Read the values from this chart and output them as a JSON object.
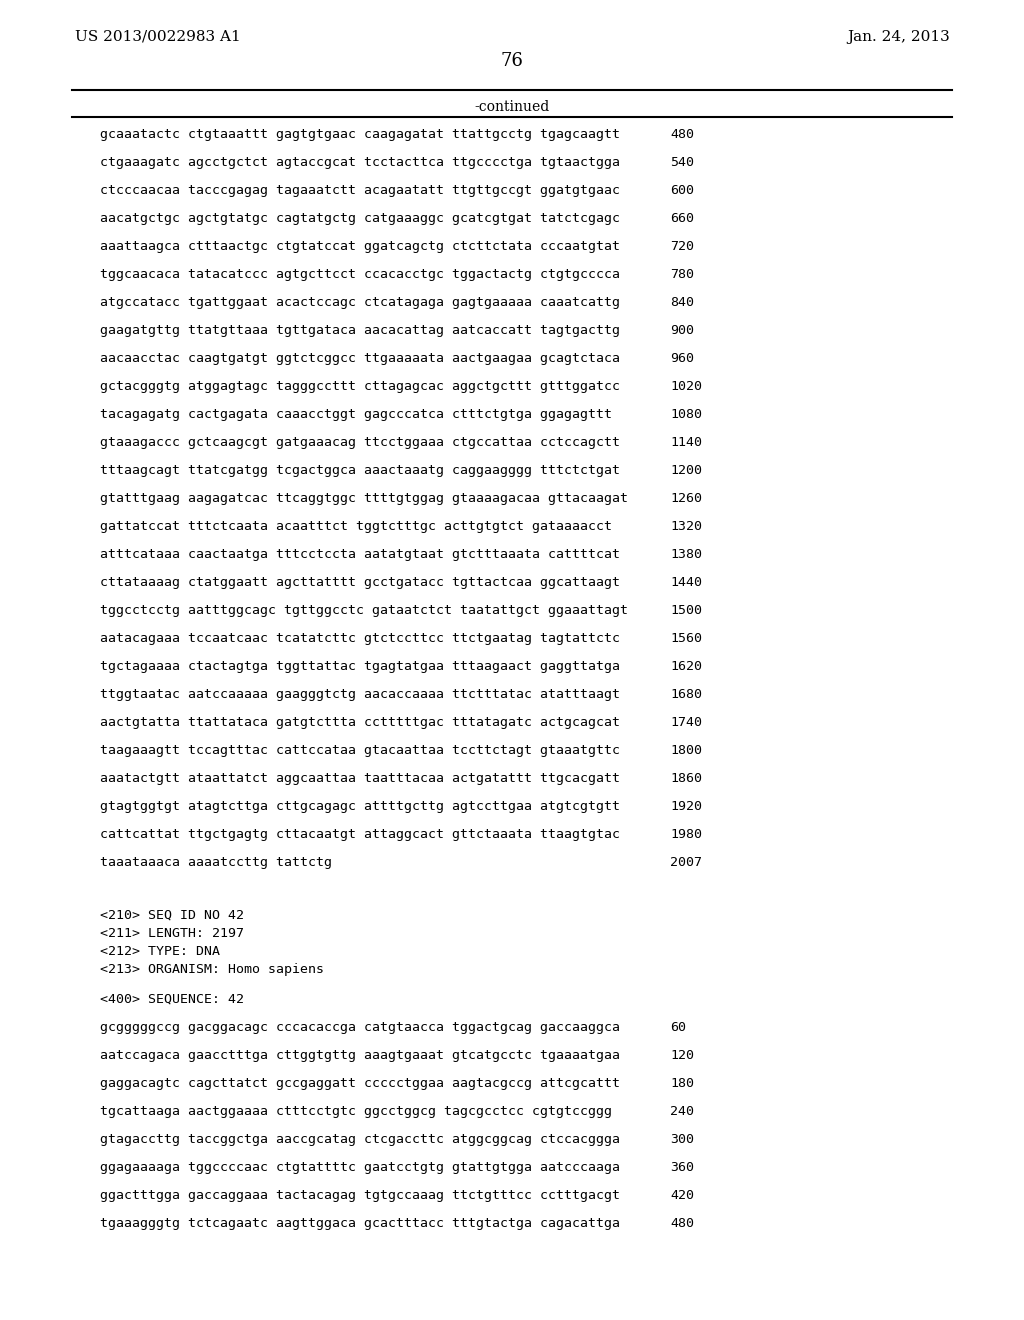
{
  "header_left": "US 2013/0022983 A1",
  "header_right": "Jan. 24, 2013",
  "page_number": "76",
  "continued_label": "-continued",
  "background_color": "#ffffff",
  "text_color": "#000000",
  "sequence_lines": [
    [
      "gcaaatactc ctgtaaattt gagtgtgaac caagagatat ttattgcctg tgagcaagtt",
      "480"
    ],
    [
      "ctgaaagatc agcctgctct agtaccgcat tcctacttca ttgcccctga tgtaactgga",
      "540"
    ],
    [
      "ctcccaacaa tacccgagag tagaaatctt acagaatatt ttgttgccgt ggatgtgaac",
      "600"
    ],
    [
      "aacatgctgc agctgtatgc cagtatgctg catgaaaggc gcatcgtgat tatctcgagc",
      "660"
    ],
    [
      "aaattaagca ctttaactgc ctgtatccat ggatcagctg ctcttctata cccaatgtat",
      "720"
    ],
    [
      "tggcaacaca tatacatccc agtgcttcct ccacacctgc tggactactg ctgtgcccca",
      "780"
    ],
    [
      "atgccatacc tgattggaat acactccagc ctcatagaga gagtgaaaaa caaatcattg",
      "840"
    ],
    [
      "gaagatgttg ttatgttaaa tgttgataca aacacattag aatcaccatt tagtgacttg",
      "900"
    ],
    [
      "aacaacctac caagtgatgt ggtctcggcc ttgaaaaata aactgaagaa gcagtctaca",
      "960"
    ],
    [
      "gctacgggtg atggagtagc tagggccttt cttagagcac aggctgcttt gtttggatcc",
      "1020"
    ],
    [
      "tacagagatg cactgagata caaacctggt gagcccatca ctttctgtga ggagagttt",
      "1080"
    ],
    [
      "gtaaagaccc gctcaagcgt gatgaaacag ttcctggaaa ctgccattaa cctccagctt",
      "1140"
    ],
    [
      "tttaagcagt ttatcgatgg tcgactggca aaactaaatg caggaagggg tttctctgat",
      "1200"
    ],
    [
      "gtatttgaag aagagatcac ttcaggtggc ttttgtggag gtaaaagacaa gttacaagat",
      "1260"
    ],
    [
      "gattatccat tttctcaata acaatttct tggtctttgc acttgtgtct gataaaacct",
      "1320"
    ],
    [
      "atttcataaa caactaatga tttcctccta aatatgtaat gtctttaaata cattttcat",
      "1380"
    ],
    [
      "cttataaaag ctatggaatt agcttatttt gcctgatacc tgttactcaa ggcattaagt",
      "1440"
    ],
    [
      "tggcctcctg aatttggcagc tgttggcctc gataatctct taatattgct ggaaattagt",
      "1500"
    ],
    [
      "aatacagaaa tccaatcaac tcatatcttc gtctccttcc ttctgaatag tagtattctc",
      "1560"
    ],
    [
      "tgctagaaaa ctactagtga tggttattac tgagtatgaa tttaagaact gaggttatga",
      "1620"
    ],
    [
      "ttggtaatac aatccaaaaa gaagggtctg aacaccaaaa ttctttatac atatttaagt",
      "1680"
    ],
    [
      "aactgtatta ttattataca gatgtcttta cctttttgac tttatagatc actgcagcat",
      "1740"
    ],
    [
      "taagaaagtt tccagtttac cattccataa gtacaattaa tccttctagt gtaaatgttc",
      "1800"
    ],
    [
      "aaatactgtt ataattatct aggcaattaa taatttacaa actgatattt ttgcacgatt",
      "1860"
    ],
    [
      "gtagtggtgt atagtcttga cttgcagagc attttgcttg agtccttgaa atgtcgtgtt",
      "1920"
    ],
    [
      "cattcattat ttgctgagtg cttacaatgt attaggcact gttctaaata ttaagtgtac",
      "1980"
    ],
    [
      "taaataaaca aaaatccttg tattctg",
      "2007"
    ]
  ],
  "metadata_lines": [
    "<210> SEQ ID NO 42",
    "<211> LENGTH: 2197",
    "<212> TYPE: DNA",
    "<213> ORGANISM: Homo sapiens"
  ],
  "sequence_label": "<400> SEQUENCE: 42",
  "sequence2_lines": [
    [
      "gcgggggccg gacggacagc cccacaccga catgtaacca tggactgcag gaccaaggca",
      "60"
    ],
    [
      "aatccagaca gaacctttga cttggtgttg aaagtgaaat gtcatgcctc tgaaaatgaa",
      "120"
    ],
    [
      "gaggacagtc cagcttatct gccgaggatt ccccctggaa aagtacgccg attcgcattt",
      "180"
    ],
    [
      "tgcattaaga aactggaaaa ctttcctgtc ggcctggcg tagcgcctcc cgtgtccggg",
      "240"
    ],
    [
      "gtagaccttg taccggctga aaccgcatag ctcgaccttc atggcggcag ctccacggga",
      "300"
    ],
    [
      "ggagaaaaga tggccccaac ctgtattttc gaatcctgtg gtattgtgga aatcccaaga",
      "360"
    ],
    [
      "ggactttgga gaccaggaaa tactacagag tgtgccaaag ttctgtttcc cctttgacgt",
      "420"
    ],
    [
      "tgaaagggtg tctcagaatc aagttggaca gcactttacc tttgtactga cagacattga",
      "480"
    ]
  ]
}
